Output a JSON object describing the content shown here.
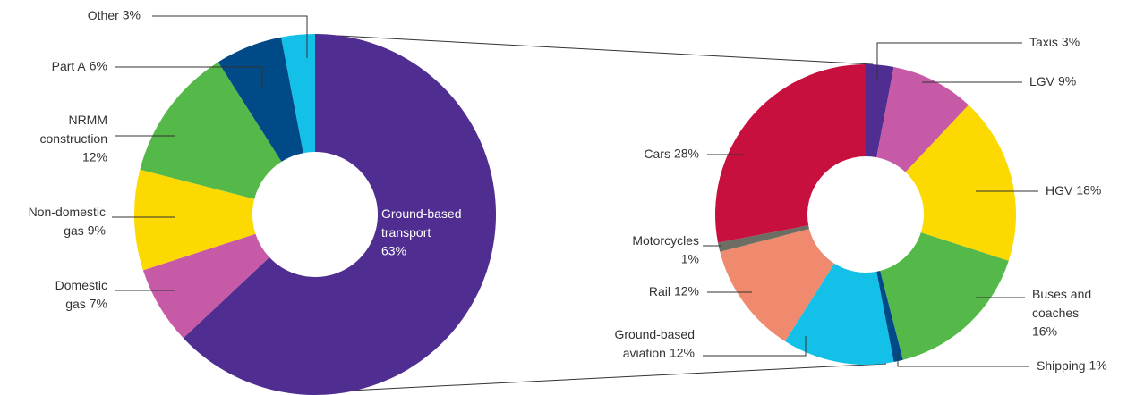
{
  "chart_data": [
    {
      "type": "donut",
      "categories": [
        "Ground-based transport",
        "Domestic gas",
        "Non-domestic gas",
        "NRMM construction",
        "Part A",
        "Other"
      ],
      "values": [
        63,
        7,
        9,
        12,
        6,
        3
      ],
      "value_labels": [
        "63%",
        "7%",
        "9%",
        "12%",
        "6%",
        "3%"
      ],
      "colors": [
        "#4f2d91",
        "#c75aa6",
        "#fcd900",
        "#54b948",
        "#004b87",
        "#12c0e8"
      ]
    },
    {
      "type": "donut",
      "categories": [
        "Taxis",
        "LGV",
        "HGV",
        "Buses and coaches",
        "Shipping",
        "Ground-based aviation",
        "Rail",
        "Motorcycles",
        "Cars"
      ],
      "values": [
        3,
        9,
        18,
        16,
        1,
        12,
        12,
        1,
        28
      ],
      "value_labels": [
        "3%",
        "9%",
        "18%",
        "16%",
        "1%",
        "12%",
        "12%",
        "1%",
        "28%"
      ],
      "colors": [
        "#4f2d91",
        "#c75aa6",
        "#fcd900",
        "#54b948",
        "#004b87",
        "#12c0e8",
        "#f08a6e",
        "#6d6e63",
        "#c8103f"
      ]
    }
  ]
}
